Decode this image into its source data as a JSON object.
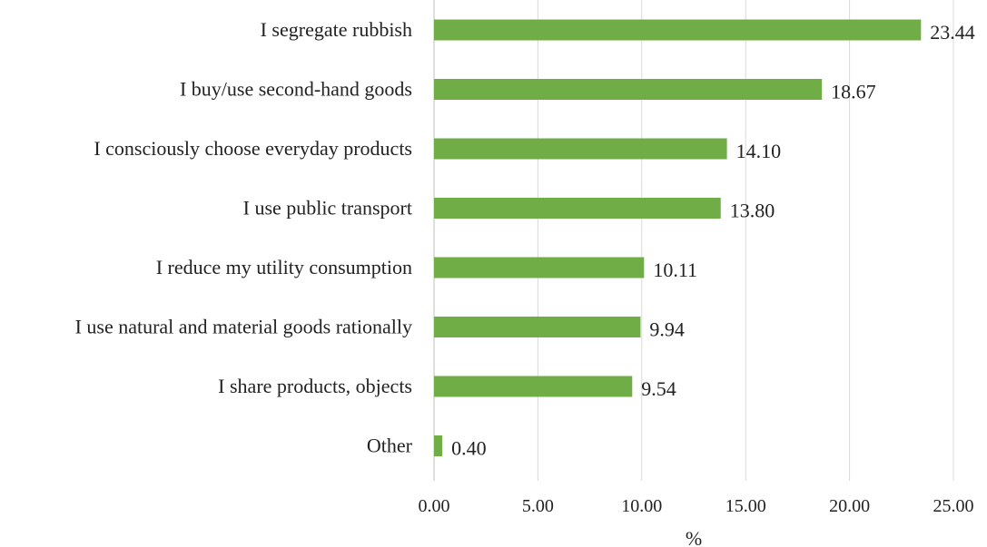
{
  "chart_data": {
    "type": "bar",
    "orientation": "horizontal",
    "categories": [
      "I segregate rubbish",
      "I buy/use second-hand goods",
      "I consciously choose everyday products",
      "I use public transport",
      "I reduce my utility consumption",
      "I use natural and material goods rationally",
      "I share products, objects",
      "Other"
    ],
    "values": [
      23.44,
      18.67,
      14.1,
      13.8,
      10.11,
      9.94,
      9.54,
      0.4
    ],
    "value_labels": [
      "23.44",
      "18.67",
      "14.10",
      "13.80",
      "10.11",
      "9.94",
      "9.54",
      "0.40"
    ],
    "title": "",
    "xlabel": "%",
    "ylabel": "",
    "xlim": [
      0,
      25
    ],
    "x_ticks": [
      0,
      5,
      10,
      15,
      20,
      25
    ],
    "x_tick_labels": [
      "0.00",
      "5.00",
      "10.00",
      "15.00",
      "20.00",
      "25.00"
    ],
    "grid": "vertical",
    "legend": "none",
    "bar_color": "#70ad47"
  }
}
